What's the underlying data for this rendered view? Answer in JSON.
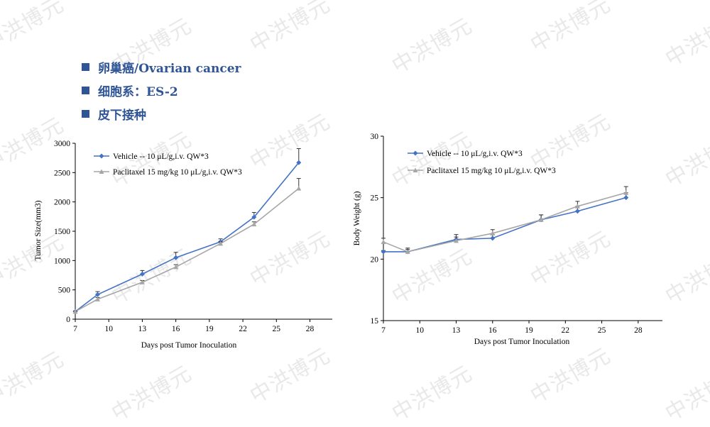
{
  "watermark_text": "中洪博元",
  "bullets": [
    "卵巢癌/Ovarian cancer",
    "细胞系：ES-2",
    "皮下接种"
  ],
  "colors": {
    "vehicle": "#4472c4",
    "paclitaxel": "#a6a6a6",
    "bullet": "#2f5597"
  },
  "chart_data": [
    {
      "type": "line",
      "xlabel": "Days post Tumor Inoculation",
      "ylabel": "Tumor Size(mm3)",
      "xlim": [
        7,
        30
      ],
      "ylim": [
        0,
        3000
      ],
      "xticks": [
        7,
        10,
        13,
        16,
        19,
        22,
        25,
        28
      ],
      "yticks": [
        0,
        500,
        1000,
        1500,
        2000,
        2500,
        3000
      ],
      "legend_position": "top-left",
      "series": [
        {
          "name": "Vehicle -- 10 μL/g,i.v. QW*3",
          "marker": "diamond",
          "color": "#4472c4",
          "x": [
            7,
            9,
            13,
            16,
            20,
            23,
            27
          ],
          "y": [
            130,
            420,
            770,
            1050,
            1320,
            1740,
            2670
          ],
          "err": [
            10,
            50,
            60,
            90,
            50,
            80,
            240
          ]
        },
        {
          "name": "Paclitaxel 15 mg/kg 10 μL/g,i.v. QW*3",
          "marker": "triangle",
          "color": "#a6a6a6",
          "x": [
            7,
            9,
            13,
            16,
            20,
            23,
            27
          ],
          "y": [
            130,
            340,
            630,
            890,
            1290,
            1620,
            2230
          ],
          "err": [
            10,
            30,
            30,
            40,
            30,
            40,
            170
          ]
        }
      ]
    },
    {
      "type": "line",
      "xlabel": "Days post Tumor Inoculation",
      "ylabel": "Body Weight (g)",
      "xlim": [
        7,
        30
      ],
      "ylim": [
        15,
        30
      ],
      "xticks": [
        7,
        10,
        13,
        16,
        19,
        22,
        25,
        28
      ],
      "yticks": [
        15,
        20,
        25,
        30
      ],
      "legend_position": "top-left",
      "series": [
        {
          "name": "Vehicle -- 10 μL/g,i.v. QW*3",
          "marker": "diamond",
          "color": "#4472c4",
          "x": [
            7,
            9,
            13,
            16,
            20,
            23,
            27
          ],
          "y": [
            20.6,
            20.6,
            21.6,
            21.7,
            23.2,
            23.9,
            25.0
          ],
          "err": [
            0.1,
            0.3,
            0.4,
            0.3,
            0.4,
            0.4,
            0.4
          ]
        },
        {
          "name": "Paclitaxel 15 mg/kg 10 μL/g,i.v. QW*3",
          "marker": "triangle",
          "color": "#a6a6a6",
          "x": [
            7,
            9,
            13,
            16,
            20,
            23,
            27
          ],
          "y": [
            21.4,
            20.6,
            21.5,
            22.1,
            23.2,
            24.3,
            25.4
          ],
          "err": [
            0.3,
            0.2,
            0.3,
            0.3,
            0.4,
            0.4,
            0.5
          ]
        }
      ]
    }
  ]
}
